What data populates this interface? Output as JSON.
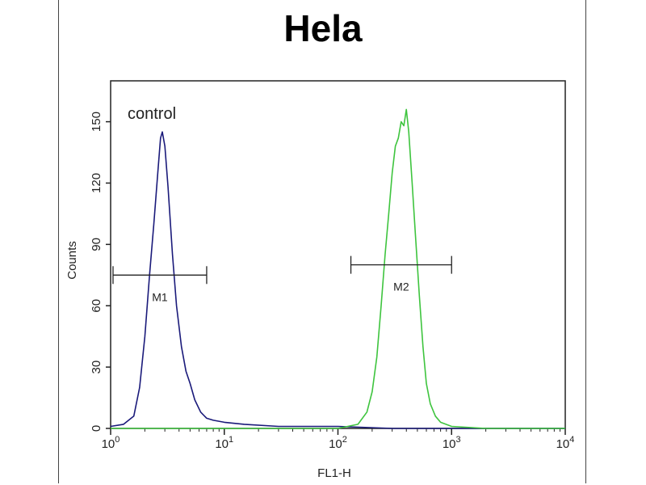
{
  "chart_data": {
    "type": "line",
    "title": "Hela",
    "xlabel": "FL1-H",
    "ylabel": "Counts",
    "x_scale": "log",
    "xlim": [
      1,
      10000
    ],
    "ylim": [
      0,
      170
    ],
    "x_ticks": [
      {
        "value": 1,
        "base": "10",
        "exp": "0"
      },
      {
        "value": 10,
        "base": "10",
        "exp": "1"
      },
      {
        "value": 100,
        "base": "10",
        "exp": "2"
      },
      {
        "value": 1000,
        "base": "10",
        "exp": "3"
      },
      {
        "value": 10000,
        "base": "10",
        "exp": "4"
      }
    ],
    "y_ticks": [
      0,
      30,
      60,
      90,
      120,
      150
    ],
    "annotation": "control",
    "series": [
      {
        "color": "#1a1a7a",
        "points": [
          [
            1.0,
            1
          ],
          [
            1.3,
            2
          ],
          [
            1.6,
            6
          ],
          [
            1.8,
            20
          ],
          [
            2.0,
            45
          ],
          [
            2.2,
            75
          ],
          [
            2.4,
            100
          ],
          [
            2.6,
            125
          ],
          [
            2.75,
            142
          ],
          [
            2.85,
            145
          ],
          [
            3.0,
            138
          ],
          [
            3.2,
            118
          ],
          [
            3.5,
            85
          ],
          [
            3.8,
            60
          ],
          [
            4.2,
            40
          ],
          [
            4.6,
            28
          ],
          [
            5.0,
            22
          ],
          [
            5.5,
            14
          ],
          [
            6.2,
            8
          ],
          [
            7.0,
            5
          ],
          [
            8.0,
            4
          ],
          [
            10,
            3
          ],
          [
            15,
            2
          ],
          [
            30,
            1
          ],
          [
            100,
            1
          ],
          [
            300,
            0
          ],
          [
            1000,
            0
          ],
          [
            10000,
            0
          ]
        ]
      },
      {
        "color": "#3ec43e",
        "points": [
          [
            1.0,
            0
          ],
          [
            10,
            0
          ],
          [
            100,
            0
          ],
          [
            150,
            2
          ],
          [
            180,
            8
          ],
          [
            200,
            18
          ],
          [
            220,
            35
          ],
          [
            240,
            60
          ],
          [
            260,
            85
          ],
          [
            280,
            105
          ],
          [
            300,
            125
          ],
          [
            320,
            138
          ],
          [
            340,
            142
          ],
          [
            360,
            150
          ],
          [
            380,
            148
          ],
          [
            400,
            156
          ],
          [
            420,
            145
          ],
          [
            450,
            120
          ],
          [
            480,
            95
          ],
          [
            520,
            65
          ],
          [
            560,
            40
          ],
          [
            600,
            22
          ],
          [
            650,
            12
          ],
          [
            720,
            6
          ],
          [
            800,
            3
          ],
          [
            1000,
            1
          ],
          [
            2000,
            0
          ],
          [
            10000,
            0
          ]
        ]
      }
    ],
    "markers": [
      {
        "label": "M1",
        "x_start": 1.05,
        "x_end": 7.0,
        "y": 75
      },
      {
        "label": "M2",
        "x_start": 130,
        "x_end": 1000,
        "y": 80
      }
    ]
  }
}
